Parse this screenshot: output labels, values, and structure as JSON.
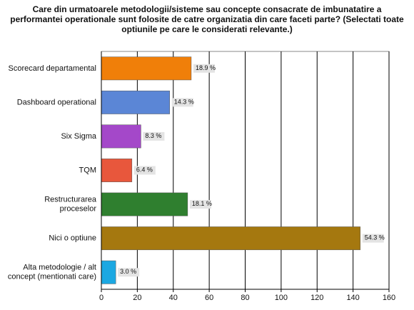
{
  "chart_data": {
    "type": "hbar",
    "title": "Care din urmatoarele metodologii/sisteme sau concepte consacrate de imbunatatire a\nperformantei operationale sunt folosite de catre organizatia din care faceti parte? (Selectati toate\noptiunile pe care le considerati relevante.)",
    "categories": [
      "Scorecard departamental",
      "Dashboard operational",
      "Six Sigma",
      "TQM",
      "Restructurarea\nproceselor",
      "Nici o optiune",
      "Alta metodologie / alt\nconcept (mentionati care)"
    ],
    "values": [
      50,
      38,
      22,
      17,
      48,
      144,
      8
    ],
    "percent_labels": [
      "18.9 %",
      "14.3 %",
      "8.3 %",
      "6.4 %",
      "18.1 %",
      "54.3 %",
      "3.0 %"
    ],
    "colors": [
      "#f07f09",
      "#5b86d6",
      "#a448c9",
      "#e8573c",
      "#2f7f2f",
      "#a5780f",
      "#1ca8e2"
    ],
    "xlim": [
      0,
      160
    ],
    "xticks": [
      0,
      20,
      40,
      60,
      80,
      100,
      120,
      140,
      160
    ],
    "grid": true
  }
}
